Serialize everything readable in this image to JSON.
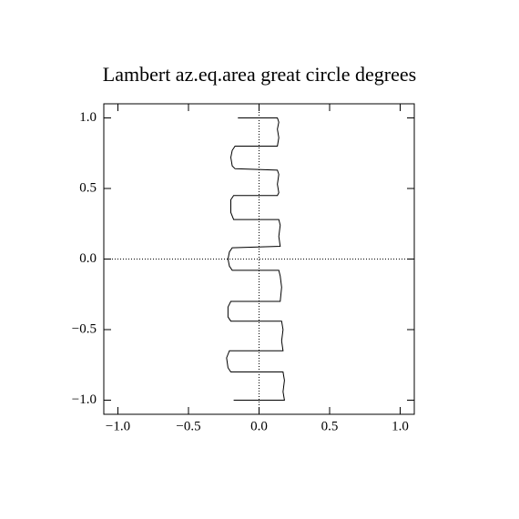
{
  "chart_data": {
    "type": "line",
    "title": "Lambert az.eq.area great circle degrees",
    "color": "#000000",
    "x": [
      -0.15,
      0.13,
      0.14,
      0.13,
      0.14,
      0.13,
      -0.17,
      -0.19,
      -0.2,
      -0.19,
      -0.17,
      0.13,
      0.14,
      0.13,
      0.14,
      0.13,
      -0.18,
      -0.2,
      -0.2,
      -0.18,
      0.14,
      0.15,
      0.14,
      0.15,
      -0.19,
      -0.21,
      -0.22,
      -0.21,
      -0.19,
      0.14,
      0.15,
      0.16,
      0.15,
      -0.2,
      -0.22,
      -0.22,
      -0.2,
      0.16,
      0.17,
      0.16,
      0.17,
      -0.21,
      -0.23,
      -0.22,
      -0.2,
      0.17,
      0.18,
      0.17,
      0.18,
      -0.18
    ],
    "y": [
      1.0,
      1.0,
      0.97,
      0.92,
      0.86,
      0.8,
      0.8,
      0.77,
      0.72,
      0.66,
      0.64,
      0.63,
      0.6,
      0.53,
      0.47,
      0.45,
      0.45,
      0.42,
      0.33,
      0.28,
      0.28,
      0.24,
      0.16,
      0.09,
      0.08,
      0.05,
      0,
      -0.05,
      -0.08,
      -0.08,
      -0.12,
      -0.2,
      -0.3,
      -0.3,
      -0.34,
      -0.41,
      -0.44,
      -0.44,
      -0.5,
      -0.58,
      -0.65,
      -0.65,
      -0.7,
      -0.77,
      -0.8,
      -0.8,
      -0.86,
      -0.94,
      -1.0,
      -1.0
    ],
    "xlim": [
      -1.1,
      1.1
    ],
    "ylim": [
      -1.1,
      1.1
    ],
    "xticks": [
      {
        "value": -1,
        "label": "−1.0"
      },
      {
        "value": -0.5,
        "label": "−0.5"
      },
      {
        "value": 0,
        "label": "0.0"
      },
      {
        "value": 0.5,
        "label": "0.5"
      },
      {
        "value": 1,
        "label": "1.0"
      }
    ],
    "yticks": [
      {
        "value": -1,
        "label": "−1.0"
      },
      {
        "value": -0.5,
        "label": "−0.5"
      },
      {
        "value": 0,
        "label": "0.0"
      },
      {
        "value": 0.5,
        "label": "0.5"
      },
      {
        "value": 1,
        "label": "1.0"
      }
    ],
    "zero_lines": true
  }
}
